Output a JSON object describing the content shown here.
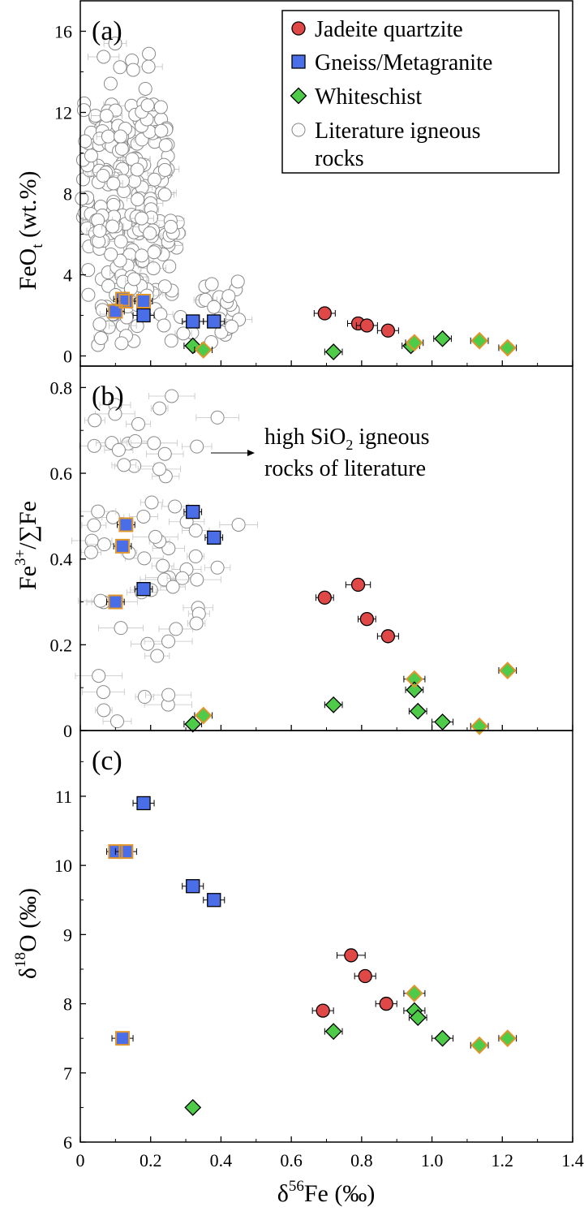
{
  "chart_data": [
    {
      "type": "scatter",
      "panel_label": "(a)",
      "ylabel": "FeO",
      "ylabel_sub": "t",
      "ylabel_suffix": " (wt.%)",
      "xlim": [
        0,
        1.4
      ],
      "ylim": [
        -0.5,
        17.5
      ],
      "yticks": [
        0,
        4,
        8,
        12,
        16
      ],
      "legend": {
        "position": "top-right",
        "entries": [
          {
            "label": "Jadeite quartzite",
            "marker": "circle",
            "color": "#e04848"
          },
          {
            "label": "Gneiss/Metagranite",
            "marker": "square",
            "color": "#4a6ee8"
          },
          {
            "label": "Whiteschist",
            "marker": "diamond",
            "color": "#4ecb48"
          },
          {
            "label": "Literature igneous",
            "label2": "rocks",
            "marker": "open-circle",
            "color": "#888888"
          }
        ]
      },
      "series": [
        {
          "name": "Jadeite quartzite",
          "marker": "circle",
          "color": "#e04848",
          "points": [
            [
              0.695,
              2.1,
              0.03
            ],
            [
              0.79,
              1.6,
              0.03
            ],
            [
              0.815,
              1.5,
              0.03
            ],
            [
              0.875,
              1.25,
              0.03
            ]
          ]
        },
        {
          "name": "Gneiss/Metagranite",
          "marker": "square",
          "color": "#4a6ee8",
          "points": [
            [
              0.1,
              2.2,
              0.025
            ],
            [
              0.12,
              2.8,
              0.025
            ],
            [
              0.13,
              2.7,
              0.025
            ],
            [
              0.18,
              2.7,
              0.025
            ],
            [
              0.18,
              2.0,
              0.03
            ],
            [
              0.32,
              1.7,
              0.03
            ],
            [
              0.38,
              1.7,
              0.03
            ]
          ]
        },
        {
          "name": "Whiteschist",
          "marker": "diamond",
          "color": "#4ecb48",
          "points": [
            [
              0.32,
              0.5,
              0.025
            ],
            [
              0.35,
              0.3,
              0.025
            ],
            [
              0.72,
              0.2,
              0.025
            ],
            [
              0.94,
              0.5,
              0.025
            ],
            [
              0.95,
              0.65,
              0.025
            ],
            [
              1.03,
              0.85,
              0.025
            ],
            [
              1.135,
              0.75,
              0.025
            ],
            [
              1.215,
              0.4,
              0.025
            ]
          ]
        }
      ]
    },
    {
      "type": "scatter",
      "panel_label": "(b)",
      "ylabel": "Fe3+/∑Fe",
      "xlim": [
        0,
        1.4
      ],
      "ylim": [
        0,
        0.85
      ],
      "yticks": [
        0,
        0.2,
        0.4,
        0.6,
        0.8
      ],
      "annotation": {
        "line1": "high SiO2 igneous",
        "line2": "rocks of literature"
      },
      "series": [
        {
          "name": "Jadeite quartzite",
          "marker": "circle",
          "color": "#e04848",
          "points": [
            [
              0.695,
              0.31,
              0.025
            ],
            [
              0.79,
              0.34,
              0.035
            ],
            [
              0.815,
              0.26,
              0.025
            ],
            [
              0.875,
              0.22,
              0.03
            ]
          ]
        },
        {
          "name": "Gneiss/Metagranite",
          "marker": "square",
          "color": "#4a6ee8",
          "points": [
            [
              0.1,
              0.3,
              0.025
            ],
            [
              0.12,
              0.43,
              0.025
            ],
            [
              0.13,
              0.48,
              0.025
            ],
            [
              0.18,
              0.33,
              0.025
            ],
            [
              0.32,
              0.51,
              0.025
            ],
            [
              0.38,
              0.45,
              0.025
            ]
          ]
        },
        {
          "name": "Whiteschist",
          "marker": "diamond",
          "color": "#4ecb48",
          "points": [
            [
              0.32,
              0.015,
              0.025
            ],
            [
              0.35,
              0.035,
              0.025
            ],
            [
              0.72,
              0.06,
              0.025
            ],
            [
              0.95,
              0.12,
              0.03
            ],
            [
              0.95,
              0.095,
              0.025
            ],
            [
              0.96,
              0.045,
              0.025
            ],
            [
              1.03,
              0.02,
              0.03
            ],
            [
              1.135,
              0.01,
              0.025
            ],
            [
              1.215,
              0.14,
              0.025
            ]
          ]
        }
      ]
    },
    {
      "type": "scatter",
      "panel_label": "(c)",
      "ylabel": "δ18O (‰)",
      "xlabel": "δ56Fe (‰)",
      "xlim": [
        0,
        1.4
      ],
      "ylim": [
        6,
        11.95
      ],
      "yticks": [
        6,
        7,
        8,
        9,
        10,
        11
      ],
      "xticks": [
        0,
        0.2,
        0.4,
        0.6,
        0.8,
        1.0,
        1.2,
        1.4
      ],
      "xtick_labels": [
        "0",
        "0.2",
        "0.4",
        "0.6",
        "0.8",
        "1.0",
        "1.2",
        "1.4"
      ],
      "series": [
        {
          "name": "Jadeite quartzite",
          "marker": "circle",
          "color": "#e04848",
          "points": [
            [
              0.69,
              7.9,
              0.03
            ],
            [
              0.77,
              8.7,
              0.04
            ],
            [
              0.81,
              8.4,
              0.03
            ],
            [
              0.87,
              8.0,
              0.03
            ]
          ]
        },
        {
          "name": "Gneiss/Metagranite",
          "marker": "square",
          "color": "#4a6ee8",
          "points": [
            [
              0.1,
              10.2,
              0.025
            ],
            [
              0.13,
              10.2,
              0.03
            ],
            [
              0.18,
              10.9,
              0.03
            ],
            [
              0.32,
              9.7,
              0.03
            ],
            [
              0.38,
              9.5,
              0.03
            ],
            [
              0.12,
              7.5,
              0.03
            ]
          ]
        },
        {
          "name": "Whiteschist",
          "marker": "diamond",
          "color": "#4ecb48",
          "points": [
            [
              0.32,
              6.5,
              0.0
            ],
            [
              0.72,
              7.6,
              0.025
            ],
            [
              0.95,
              8.15,
              0.03
            ],
            [
              0.95,
              7.9,
              0.03
            ],
            [
              0.96,
              7.8,
              0.025
            ],
            [
              1.03,
              7.5,
              0.03
            ],
            [
              1.135,
              7.4,
              0.025
            ],
            [
              1.215,
              7.5,
              0.025
            ]
          ]
        }
      ]
    }
  ]
}
